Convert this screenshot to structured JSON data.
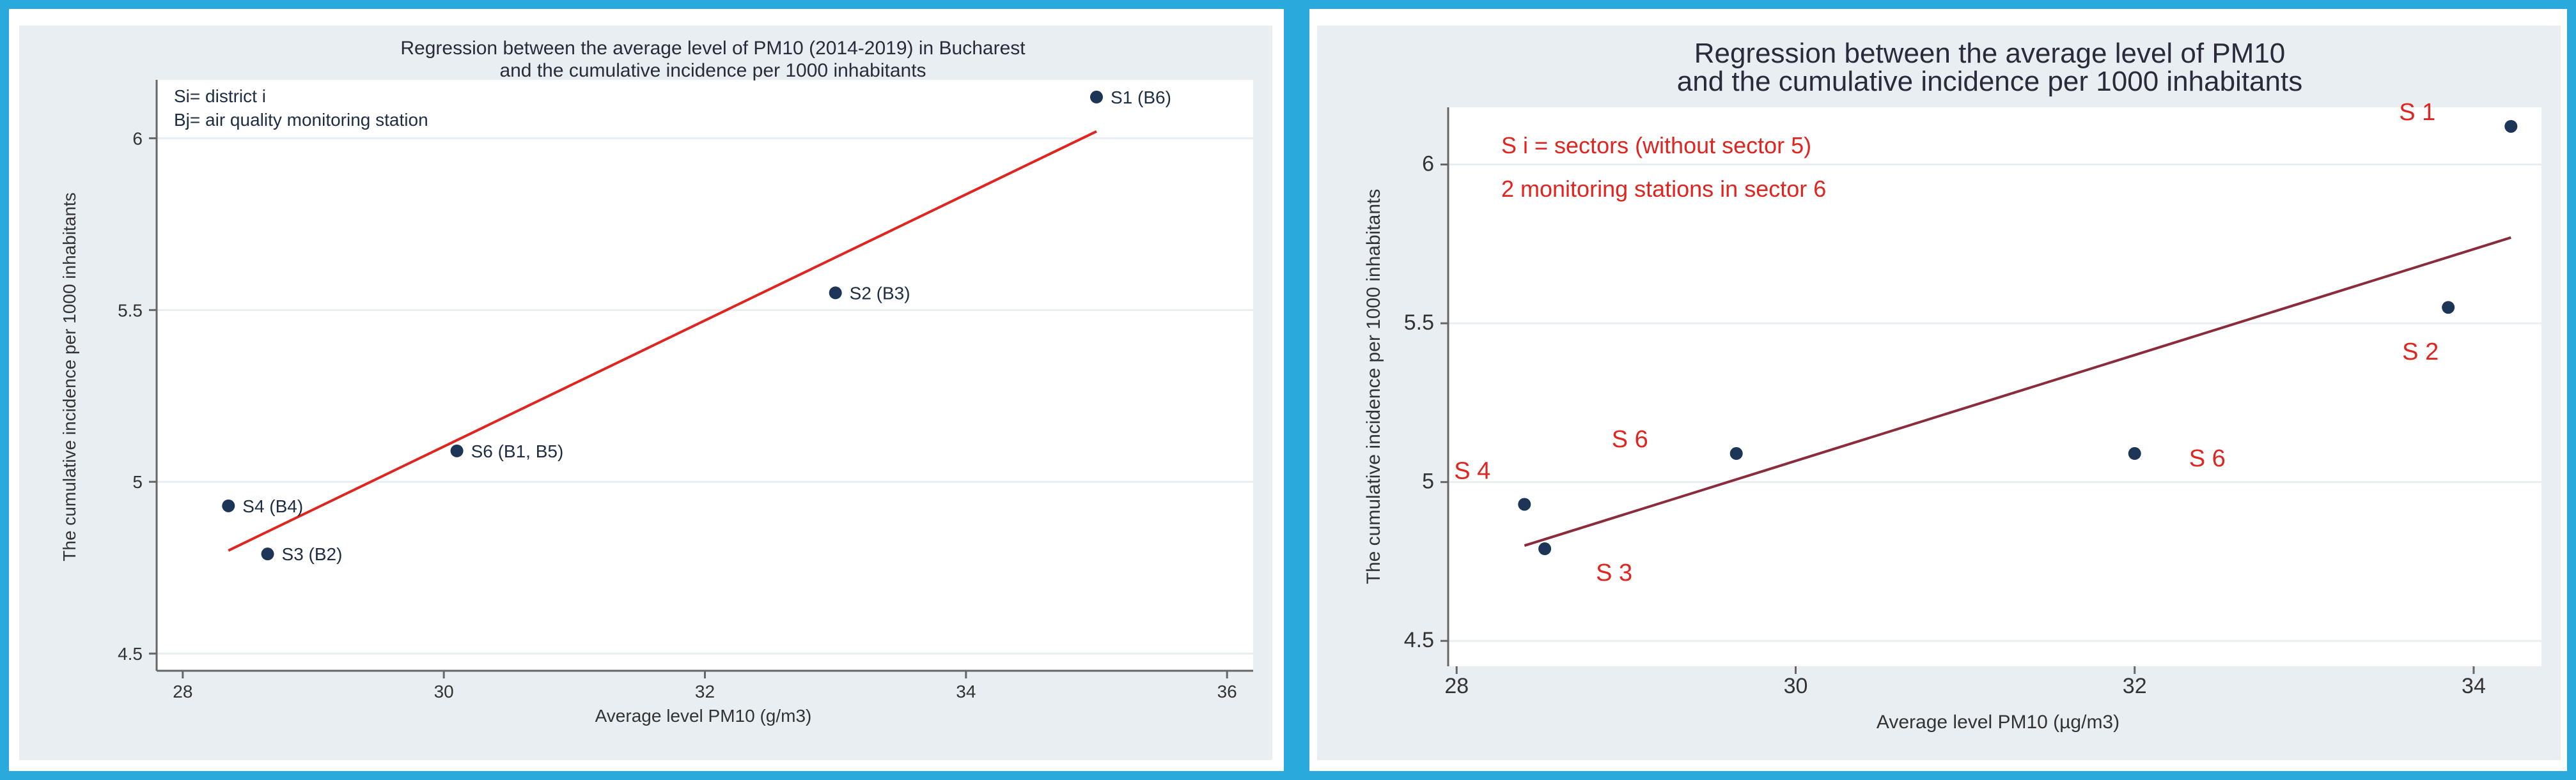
{
  "chart_data": [
    {
      "type": "scatter",
      "title": [
        "Regression between the average level of PM10 (2014-2019) in Bucharest",
        "and the cumulative incidence per 1000 inhabitants"
      ],
      "xlabel": "Average level PM10 (g/m3)",
      "ylabel": "The cumulative incidence per 1000 inhabitants",
      "xlim": [
        27.8,
        36.2
      ],
      "ylim": [
        4.45,
        6.17
      ],
      "xticks": [
        "28",
        "30",
        "32",
        "34",
        "36"
      ],
      "yticks": [
        "4.5",
        "5",
        "5.5",
        "6"
      ],
      "annotations": [
        "Si= district i",
        "Bj= air quality monitoring station"
      ],
      "points": [
        {
          "label": "S1 (B6)",
          "x": 35.0,
          "y": 6.12
        },
        {
          "label": "S2 (B3)",
          "x": 33.0,
          "y": 5.55
        },
        {
          "label": "S6 (B1, B5)",
          "x": 30.1,
          "y": 5.09
        },
        {
          "label": "S4 (B4)",
          "x": 28.35,
          "y": 4.93
        },
        {
          "label": "S3 (B2)",
          "x": 28.65,
          "y": 4.79
        }
      ],
      "fit_line": {
        "x": [
          28.35,
          35.0
        ],
        "y": [
          4.8,
          6.02
        ]
      },
      "colors": {
        "points": "#1d3557",
        "fit_line": "#e0241f"
      }
    },
    {
      "type": "scatter",
      "title": [
        "Regression between the average level of PM10",
        "and the cumulative incidence per 1000 inhabitants"
      ],
      "xlabel": "Average level  PM10 (µg/m3)",
      "ylabel": "The cumulative incidence per 1000 inhabitants",
      "xlim": [
        27.95,
        34.4
      ],
      "ylim": [
        4.42,
        6.18
      ],
      "xticks": [
        "28",
        "30",
        "32",
        "34"
      ],
      "yticks": [
        "4.5",
        "5",
        "5.5",
        "6"
      ],
      "annotations": [
        "S i = sectors (without sector 5)",
        "2 monitoring stations in sector 6"
      ],
      "points": [
        {
          "label": "S 1",
          "x": 34.22,
          "y": 6.12
        },
        {
          "label": "S 2",
          "x": 33.85,
          "y": 5.55
        },
        {
          "label": "S 6",
          "x": 29.65,
          "y": 5.09
        },
        {
          "label": "S 6",
          "x": 32.0,
          "y": 5.09
        },
        {
          "label": "S 4",
          "x": 28.4,
          "y": 4.93
        },
        {
          "label": "S 3",
          "x": 28.52,
          "y": 4.79
        }
      ],
      "fit_line": {
        "x": [
          28.4,
          34.22
        ],
        "y": [
          4.8,
          5.77
        ]
      },
      "colors": {
        "points": "#1d3557",
        "fit_line": "#8b2c3c",
        "labels": "#e0241f"
      }
    }
  ]
}
